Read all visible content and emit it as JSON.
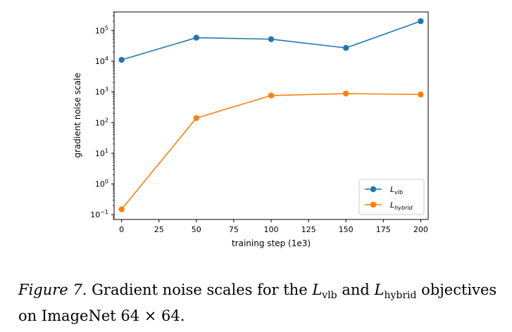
{
  "chart_data": {
    "type": "line",
    "xlabel": "training step (1e3)",
    "ylabel": "gradient noise scale",
    "x_ticks": [
      0,
      25,
      50,
      75,
      100,
      125,
      150,
      175,
      200
    ],
    "y_ticks": [
      {
        "base": "10",
        "exp": "−1",
        "value": 0.1
      },
      {
        "base": "10",
        "exp": "0",
        "value": 1
      },
      {
        "base": "10",
        "exp": "1",
        "value": 10
      },
      {
        "base": "10",
        "exp": "2",
        "value": 100
      },
      {
        "base": "10",
        "exp": "3",
        "value": 1000
      },
      {
        "base": "10",
        "exp": "4",
        "value": 10000
      },
      {
        "base": "10",
        "exp": "5",
        "value": 100000
      }
    ],
    "yscale": "log",
    "xlim": [
      -5,
      205
    ],
    "ylim": [
      0.07,
      400000
    ],
    "grid": false,
    "legend_position": "lower-right",
    "x": [
      0,
      50,
      100,
      150,
      200
    ],
    "series": [
      {
        "name": "L",
        "name_sub": "vlb",
        "color": "#1f77b4",
        "values": [
          11000,
          58000,
          52000,
          27000,
          200000
        ]
      },
      {
        "name": "L",
        "name_sub": "hybrid",
        "color": "#ff7f0e",
        "values": [
          0.15,
          140,
          760,
          880,
          820
        ]
      }
    ]
  },
  "caption": {
    "figure_label": "Figure 7.",
    "text_1": "Gradient noise scales for the",
    "term_1": "L",
    "term_1_sub": "vlb",
    "text_2": "and",
    "term_2": "L",
    "term_2_sub": "hybrid",
    "text_3": "objectives on ImageNet 64 × 64."
  }
}
